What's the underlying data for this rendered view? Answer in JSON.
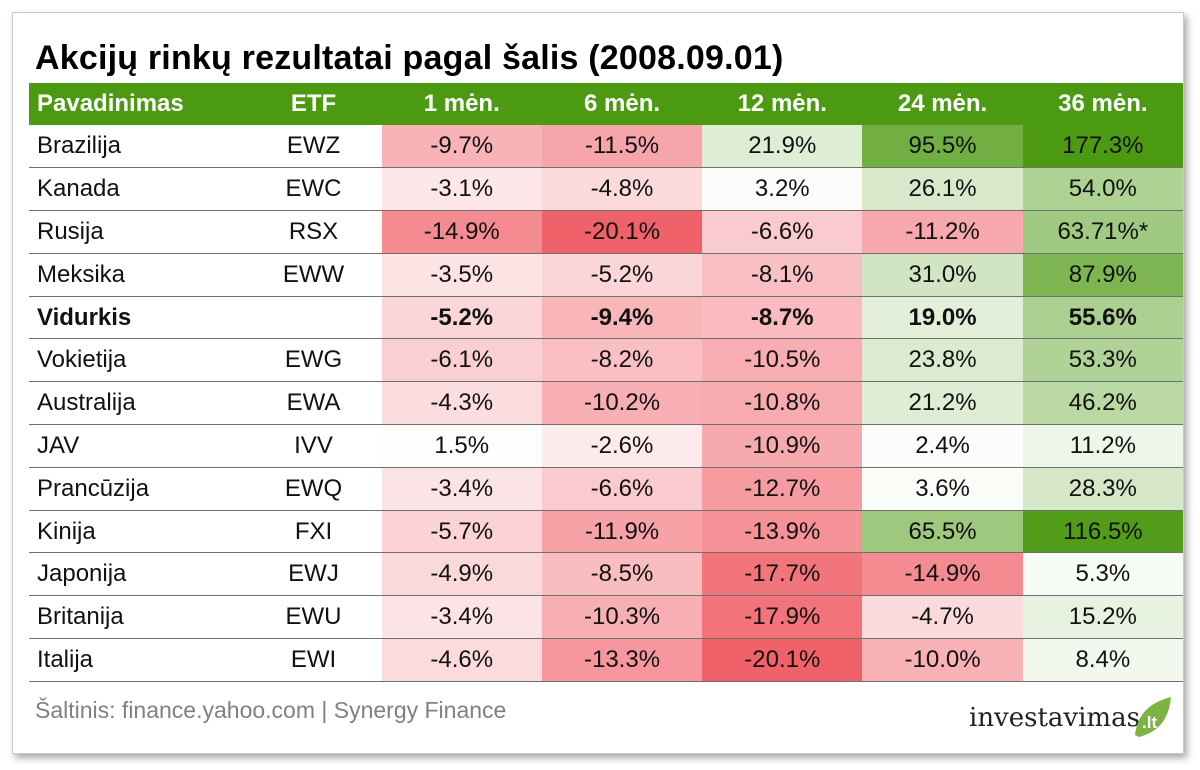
{
  "title": "Akcijų rinkų rezultatai pagal šalis (2008.09.01)",
  "colors": {
    "header_bg": "#4c9a12",
    "header_text": "#ffffff",
    "negative_max": "#f0626a",
    "positive_max": "#4c9a12",
    "neutral": "#ffffff"
  },
  "chart_data": {
    "type": "table",
    "columns": [
      "Pavadinimas",
      "ETF",
      "1 mėn.",
      "6 mėn.",
      "12 mėn.",
      "24 mėn.",
      "36 mėn."
    ],
    "rows": [
      {
        "name": "Brazilija",
        "etf": "EWZ",
        "values": [
          "-9.7%",
          "-11.5%",
          "21.9%",
          "95.5%",
          "177.3%"
        ]
      },
      {
        "name": "Kanada",
        "etf": "EWC",
        "values": [
          "-3.1%",
          "-4.8%",
          "3.2%",
          "26.1%",
          "54.0%"
        ]
      },
      {
        "name": "Rusija",
        "etf": "RSX",
        "values": [
          "-14.9%",
          "-20.1%",
          "-6.6%",
          "-11.2%",
          "63.71%*"
        ]
      },
      {
        "name": "Meksika",
        "etf": "EWW",
        "values": [
          "-3.5%",
          "-5.2%",
          "-8.1%",
          "31.0%",
          "87.9%"
        ]
      },
      {
        "name": "Vidurkis",
        "etf": "",
        "bold": true,
        "values": [
          "-5.2%",
          "-9.4%",
          "-8.7%",
          "19.0%",
          "55.6%"
        ]
      },
      {
        "name": "Vokietija",
        "etf": "EWG",
        "values": [
          "-6.1%",
          "-8.2%",
          "-10.5%",
          "23.8%",
          "53.3%"
        ]
      },
      {
        "name": "Australija",
        "etf": "EWA",
        "values": [
          "-4.3%",
          "-10.2%",
          "-10.8%",
          "21.2%",
          "46.2%"
        ]
      },
      {
        "name": "JAV",
        "etf": "IVV",
        "values": [
          "1.5%",
          "-2.6%",
          "-10.9%",
          "2.4%",
          "11.2%"
        ]
      },
      {
        "name": "Prancūzija",
        "etf": "EWQ",
        "values": [
          "-3.4%",
          "-6.6%",
          "-12.7%",
          "3.6%",
          "28.3%"
        ]
      },
      {
        "name": "Kinija",
        "etf": "FXI",
        "values": [
          "-5.7%",
          "-11.9%",
          "-13.9%",
          "65.5%",
          "116.5%"
        ]
      },
      {
        "name": "Japonija",
        "etf": "EWJ",
        "values": [
          "-4.9%",
          "-8.5%",
          "-17.7%",
          "-14.9%",
          "5.3%"
        ]
      },
      {
        "name": "Britanija",
        "etf": "EWU",
        "values": [
          "-3.4%",
          "-10.3%",
          "-17.9%",
          "-4.7%",
          "15.2%"
        ]
      },
      {
        "name": "Italija",
        "etf": "EWI",
        "values": [
          "-4.6%",
          "-13.3%",
          "-20.1%",
          "-10.0%",
          "8.4%"
        ]
      }
    ],
    "color_scale": {
      "negative_min": -20.1,
      "positive_max": 177.3
    }
  },
  "footer": {
    "source": "Šaltinis: finance.yahoo.com | Synergy Finance",
    "logo_text": "investavimas",
    "logo_suffix": ".lt"
  }
}
